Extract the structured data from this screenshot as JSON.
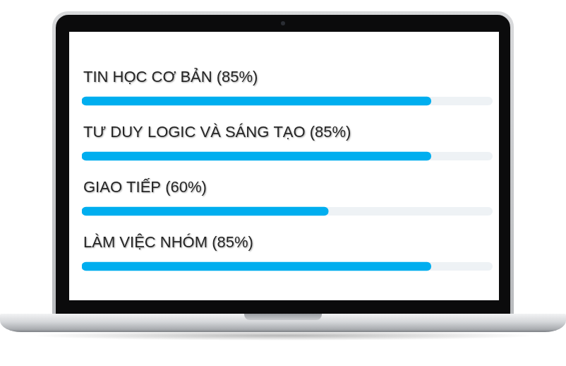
{
  "chart_data": {
    "type": "bar",
    "orientation": "horizontal",
    "categories": [
      "TIN HỌC CƠ BẢN (85%)",
      "TƯ DUY LOGIC VÀ SÁNG TẠO (85%)",
      "GIAO TIẾP (60%)",
      "LÀM VIỆC NHÓM (85%)"
    ],
    "values": [
      85,
      85,
      60,
      85
    ],
    "color": "#00aeef",
    "xlim": [
      0,
      100
    ],
    "tick_labels": false,
    "grid": false
  }
}
